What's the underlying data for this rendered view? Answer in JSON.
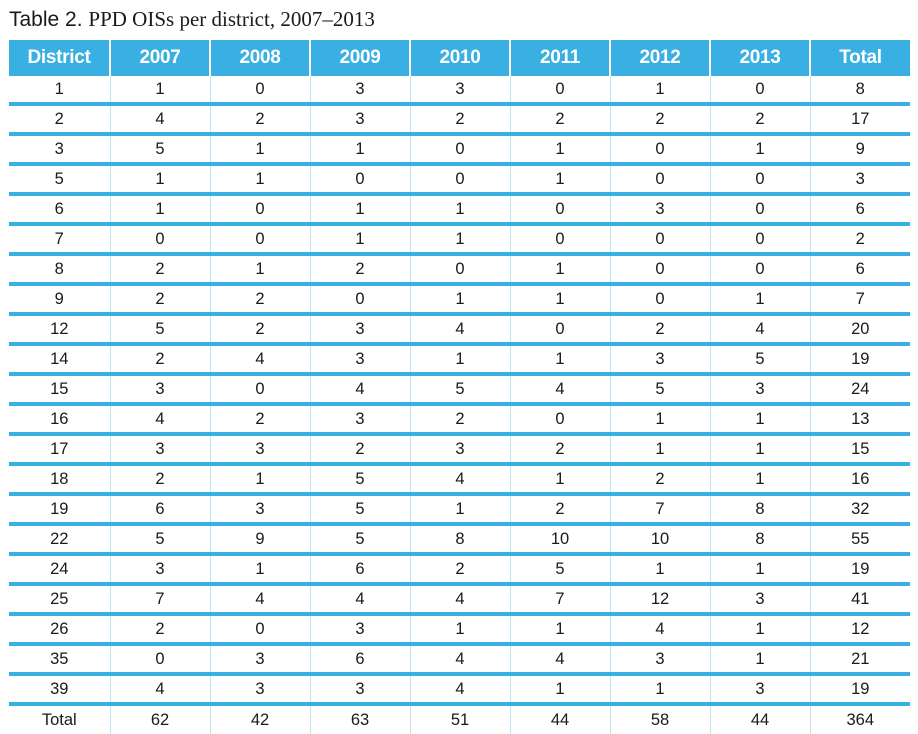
{
  "caption": {
    "label": "Table 2.",
    "title": "PPD OISs per district, 2007–2013"
  },
  "table": {
    "columns": [
      "District",
      "2007",
      "2008",
      "2009",
      "2010",
      "2011",
      "2012",
      "2013",
      "Total"
    ],
    "rows": [
      [
        "1",
        "1",
        "0",
        "3",
        "3",
        "0",
        "1",
        "0",
        "8"
      ],
      [
        "2",
        "4",
        "2",
        "3",
        "2",
        "2",
        "2",
        "2",
        "17"
      ],
      [
        "3",
        "5",
        "1",
        "1",
        "0",
        "1",
        "0",
        "1",
        "9"
      ],
      [
        "5",
        "1",
        "1",
        "0",
        "0",
        "1",
        "0",
        "0",
        "3"
      ],
      [
        "6",
        "1",
        "0",
        "1",
        "1",
        "0",
        "3",
        "0",
        "6"
      ],
      [
        "7",
        "0",
        "0",
        "1",
        "1",
        "0",
        "0",
        "0",
        "2"
      ],
      [
        "8",
        "2",
        "1",
        "2",
        "0",
        "1",
        "0",
        "0",
        "6"
      ],
      [
        "9",
        "2",
        "2",
        "0",
        "1",
        "1",
        "0",
        "1",
        "7"
      ],
      [
        "12",
        "5",
        "2",
        "3",
        "4",
        "0",
        "2",
        "4",
        "20"
      ],
      [
        "14",
        "2",
        "4",
        "3",
        "1",
        "1",
        "3",
        "5",
        "19"
      ],
      [
        "15",
        "3",
        "0",
        "4",
        "5",
        "4",
        "5",
        "3",
        "24"
      ],
      [
        "16",
        "4",
        "2",
        "3",
        "2",
        "0",
        "1",
        "1",
        "13"
      ],
      [
        "17",
        "3",
        "3",
        "2",
        "3",
        "2",
        "1",
        "1",
        "15"
      ],
      [
        "18",
        "2",
        "1",
        "5",
        "4",
        "1",
        "2",
        "1",
        "16"
      ],
      [
        "19",
        "6",
        "3",
        "5",
        "1",
        "2",
        "7",
        "8",
        "32"
      ],
      [
        "22",
        "5",
        "9",
        "5",
        "8",
        "10",
        "10",
        "8",
        "55"
      ],
      [
        "24",
        "3",
        "1",
        "6",
        "2",
        "5",
        "1",
        "1",
        "19"
      ],
      [
        "25",
        "7",
        "4",
        "4",
        "4",
        "7",
        "12",
        "3",
        "41"
      ],
      [
        "26",
        "2",
        "0",
        "3",
        "1",
        "1",
        "4",
        "1",
        "12"
      ],
      [
        "35",
        "0",
        "3",
        "6",
        "4",
        "4",
        "3",
        "1",
        "21"
      ],
      [
        "39",
        "4",
        "3",
        "3",
        "4",
        "1",
        "1",
        "3",
        "19"
      ]
    ],
    "total_row": [
      "Total",
      "62",
      "42",
      "63",
      "51",
      "44",
      "58",
      "44",
      "364"
    ]
  },
  "colors": {
    "header_background": "#3ab0e2",
    "header_text": "#ffffff",
    "row_separator": "#3ab0e2"
  }
}
